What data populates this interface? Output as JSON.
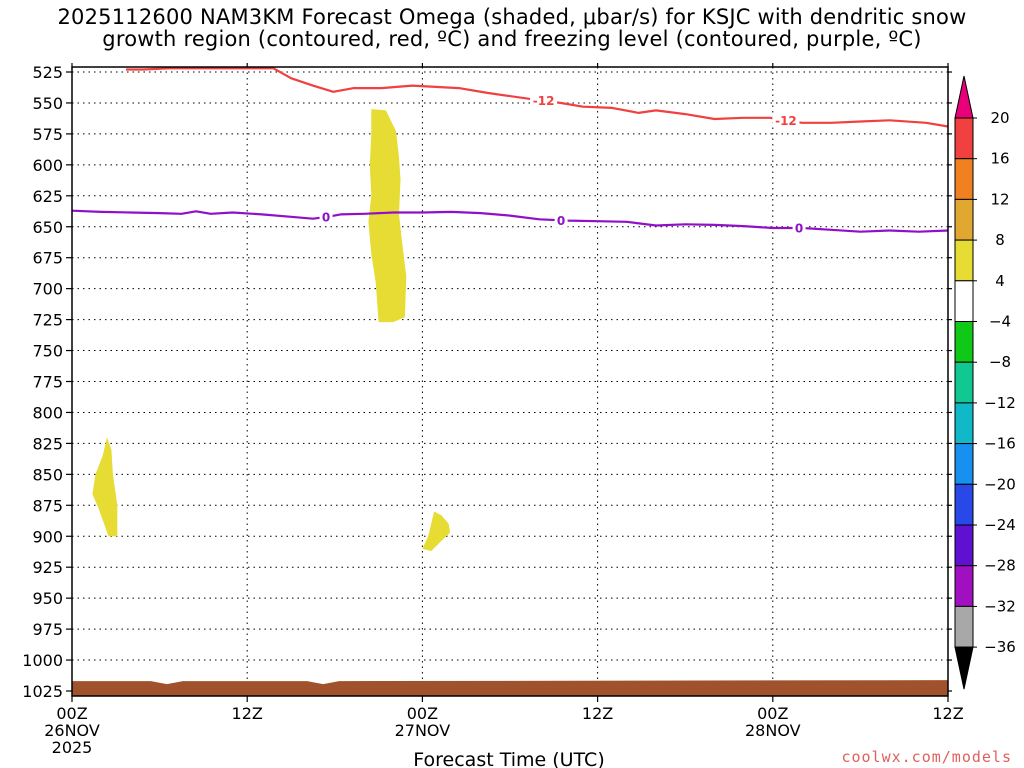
{
  "title_line1": "2025112600 NAM3KM Forecast Omega (shaded, μbar/s) for KSJC with dendritic snow",
  "title_line2": "growth region (contoured, red, ºC) and freezing level (contoured, purple, ºC)",
  "credit": "coolwx.com/models",
  "chart_data": {
    "type": "time-height",
    "title": "2025112600 NAM3KM Forecast Omega (shaded, μbar/s) for KSJC with dendritic snow growth region (contoured, red, ºC) and freezing level (contoured, purple, ºC)",
    "xlabel": "Forecast Time (UTC)",
    "xlim_hours": [
      0,
      60
    ],
    "xticks": [
      {
        "hour": 0,
        "label": "00Z",
        "sub": "26NOV",
        "sub2": "2025"
      },
      {
        "hour": 12,
        "label": "12Z",
        "sub": "",
        "sub2": ""
      },
      {
        "hour": 24,
        "label": "00Z",
        "sub": "27NOV",
        "sub2": ""
      },
      {
        "hour": 36,
        "label": "12Z",
        "sub": "",
        "sub2": ""
      },
      {
        "hour": 48,
        "label": "00Z",
        "sub": "28NOV",
        "sub2": ""
      },
      {
        "hour": 60,
        "label": "12Z",
        "sub": "",
        "sub2": ""
      }
    ],
    "ylabel": "",
    "ylim_hpa": [
      525,
      1030
    ],
    "yticks": [
      525,
      550,
      575,
      600,
      625,
      650,
      675,
      700,
      725,
      750,
      775,
      800,
      825,
      850,
      875,
      900,
      925,
      950,
      975,
      1000,
      1025
    ],
    "grid": true,
    "colorbar": {
      "labels": [
        20,
        16,
        12,
        8,
        4,
        -4,
        -8,
        -12,
        -16,
        -20,
        -24,
        -28,
        -32,
        -36
      ],
      "bins": [
        {
          "from": 16,
          "to": 20,
          "color": "#f04040"
        },
        {
          "from": 12,
          "to": 16,
          "color": "#f08020"
        },
        {
          "from": 8,
          "to": 12,
          "color": "#e0a830"
        },
        {
          "from": 4,
          "to": 8,
          "color": "#e6dc34"
        },
        {
          "from": -4,
          "to": 4,
          "color": "#ffffff"
        },
        {
          "from": -8,
          "to": -4,
          "color": "#10c818"
        },
        {
          "from": -12,
          "to": -8,
          "color": "#10c890"
        },
        {
          "from": -16,
          "to": -12,
          "color": "#10b8c8"
        },
        {
          "from": -20,
          "to": -16,
          "color": "#1890f0"
        },
        {
          "from": -24,
          "to": -20,
          "color": "#2848e8"
        },
        {
          "from": -28,
          "to": -24,
          "color": "#6010d0"
        },
        {
          "from": -32,
          "to": -28,
          "color": "#a010c0"
        },
        {
          "from": -36,
          "to": -32,
          "color": "#a8a8a8"
        }
      ],
      "top_triangle_color": "#e8007a",
      "bottom_triangle_color": "#000000"
    },
    "shaded_regions": [
      {
        "value_range": "4 to 8",
        "color": "#e6dc34",
        "points": [
          [
            20.5,
            555
          ],
          [
            21.5,
            556
          ],
          [
            22.2,
            573
          ],
          [
            22.4,
            594
          ],
          [
            22.5,
            612
          ],
          [
            22.4,
            640
          ],
          [
            22.6,
            662
          ],
          [
            22.9,
            690
          ],
          [
            22.8,
            723
          ],
          [
            22.0,
            727
          ],
          [
            21.0,
            727
          ],
          [
            20.8,
            695
          ],
          [
            20.5,
            672
          ],
          [
            20.3,
            646
          ],
          [
            20.5,
            625
          ],
          [
            20.4,
            600
          ],
          [
            20.5,
            575
          ]
        ]
      },
      {
        "value_range": "4 to 8",
        "color": "#e6dc34",
        "points": [
          [
            2.4,
            820
          ],
          [
            2.7,
            830
          ],
          [
            2.8,
            850
          ],
          [
            3.1,
            875
          ],
          [
            3.1,
            900
          ],
          [
            2.5,
            900
          ],
          [
            2.2,
            890
          ],
          [
            1.8,
            877
          ],
          [
            1.4,
            866
          ],
          [
            1.6,
            850
          ],
          [
            2.1,
            835
          ]
        ]
      },
      {
        "value_range": "4 to 8",
        "color": "#e6dc34",
        "points": [
          [
            24.8,
            880
          ],
          [
            25.3,
            883
          ],
          [
            25.8,
            890
          ],
          [
            25.9,
            897
          ],
          [
            25.2,
            905
          ],
          [
            24.6,
            912
          ],
          [
            24.0,
            910
          ],
          [
            24.4,
            900
          ],
          [
            24.6,
            890
          ]
        ]
      }
    ],
    "series": [
      {
        "name": "-12",
        "color": "#f04040",
        "points": [
          [
            3.7,
            523
          ],
          [
            4.9,
            523
          ],
          [
            6.7,
            522
          ],
          [
            13.8,
            522
          ],
          [
            15,
            530
          ],
          [
            16.5,
            536
          ],
          [
            17.9,
            541
          ],
          [
            19.3,
            538
          ],
          [
            21.2,
            538
          ],
          [
            23.3,
            536
          ],
          [
            26.5,
            538
          ],
          [
            28.5,
            542
          ],
          [
            31.5,
            547
          ],
          [
            33.5,
            550
          ],
          [
            35,
            553
          ],
          [
            37,
            554
          ],
          [
            38.8,
            558
          ],
          [
            40,
            556
          ],
          [
            42,
            559
          ],
          [
            44,
            563
          ],
          [
            46,
            562
          ],
          [
            47.8,
            562
          ],
          [
            50,
            566
          ],
          [
            52,
            566
          ],
          [
            54,
            565
          ],
          [
            56,
            564
          ],
          [
            58.5,
            566
          ],
          [
            60,
            569
          ]
        ],
        "labels": [
          {
            "hour": 32.3,
            "text": "-12"
          },
          {
            "hour": 48.9,
            "text": "-12"
          }
        ]
      },
      {
        "name": "0",
        "color": "#9010c8",
        "points": [
          [
            0,
            637
          ],
          [
            2,
            638
          ],
          [
            4,
            638.5
          ],
          [
            6,
            639
          ],
          [
            7.5,
            639.5
          ],
          [
            8.5,
            637.5
          ],
          [
            9.5,
            639.5
          ],
          [
            11,
            638.5
          ],
          [
            13,
            640
          ],
          [
            15,
            642
          ],
          [
            16.5,
            643.5
          ],
          [
            17.5,
            642
          ],
          [
            18.4,
            640
          ],
          [
            20,
            639.5
          ],
          [
            22,
            638.5
          ],
          [
            24,
            638.5
          ],
          [
            26,
            638
          ],
          [
            28,
            639
          ],
          [
            30,
            641
          ],
          [
            32,
            644
          ],
          [
            34,
            645
          ],
          [
            36,
            645.5
          ],
          [
            38,
            646
          ],
          [
            40,
            649
          ],
          [
            42,
            648
          ],
          [
            44,
            648.5
          ],
          [
            46,
            649.5
          ],
          [
            48,
            651
          ],
          [
            50,
            651
          ],
          [
            52,
            652.5
          ],
          [
            54,
            654
          ],
          [
            56,
            653
          ],
          [
            58,
            654
          ],
          [
            60,
            653
          ]
        ],
        "labels": [
          {
            "hour": 17.4,
            "text": "0"
          },
          {
            "hour": 33.5,
            "text": "0"
          },
          {
            "hour": 49.8,
            "text": "0"
          }
        ]
      }
    ],
    "terrain": {
      "color": "#a0522d",
      "top_hpa": 1017,
      "dip_hours": [
        6.5,
        17.2
      ]
    }
  }
}
